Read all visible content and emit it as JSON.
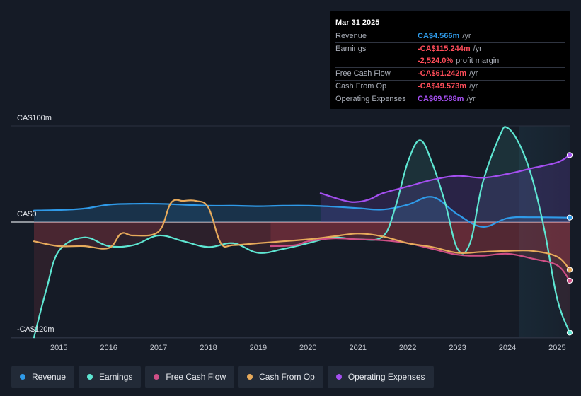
{
  "colors": {
    "background": "#151b26",
    "revenue": "#2f9ae8",
    "earnings": "#5ee6d2",
    "free_cash_flow": "#cf4f86",
    "cash_from_op": "#e7aa5b",
    "operating_expenses": "#a44ff0",
    "negative": "#ff4d5a",
    "positive_fill": "#1f4f77"
  },
  "tooltip": {
    "date": "Mar 31 2025",
    "rows": [
      {
        "label": "Revenue",
        "value": "CA$4.566m",
        "unit": "/yr",
        "color": "#2f9ae8"
      },
      {
        "label": "Earnings",
        "value": "-CA$115.244m",
        "unit": "/yr",
        "color": "#ff4d5a"
      },
      {
        "label": "",
        "value": "-2,524.0%",
        "unit": "profit margin",
        "color": "#ff4d5a"
      },
      {
        "label": "Free Cash Flow",
        "value": "-CA$61.242m",
        "unit": "/yr",
        "color": "#ff4d5a"
      },
      {
        "label": "Cash From Op",
        "value": "-CA$49.573m",
        "unit": "/yr",
        "color": "#ff4d5a"
      },
      {
        "label": "Operating Expenses",
        "value": "CA$69.588m",
        "unit": "/yr",
        "color": "#a44ff0"
      }
    ]
  },
  "legend": [
    {
      "label": "Revenue",
      "color": "#2f9ae8"
    },
    {
      "label": "Earnings",
      "color": "#5ee6d2"
    },
    {
      "label": "Free Cash Flow",
      "color": "#cf4f86"
    },
    {
      "label": "Cash From Op",
      "color": "#e7aa5b"
    },
    {
      "label": "Operating Expenses",
      "color": "#a44ff0"
    }
  ],
  "chart_data": {
    "type": "line",
    "y_axis_labels": [
      "CA$100m",
      "CA$0",
      "-CA$120m"
    ],
    "ylim": [
      -120,
      100
    ],
    "xlim": [
      2014.5,
      2025.25
    ],
    "x_ticks": [
      "2015",
      "2016",
      "2017",
      "2018",
      "2019",
      "2020",
      "2021",
      "2022",
      "2023",
      "2024",
      "2025"
    ],
    "grid": true,
    "series": [
      {
        "name": "Revenue",
        "color": "#2f9ae8",
        "points": [
          [
            2014.5,
            12
          ],
          [
            2015.0,
            12.5
          ],
          [
            2015.5,
            14
          ],
          [
            2016.0,
            18
          ],
          [
            2016.5,
            19
          ],
          [
            2017.0,
            19
          ],
          [
            2017.5,
            18
          ],
          [
            2018.0,
            17
          ],
          [
            2018.5,
            17
          ],
          [
            2019.0,
            16.5
          ],
          [
            2019.5,
            17
          ],
          [
            2020.0,
            17
          ],
          [
            2020.5,
            16
          ],
          [
            2021.0,
            14.5
          ],
          [
            2021.5,
            13
          ],
          [
            2022.0,
            18
          ],
          [
            2022.5,
            26
          ],
          [
            2023.0,
            8
          ],
          [
            2023.5,
            -5
          ],
          [
            2024.0,
            4
          ],
          [
            2024.5,
            5
          ],
          [
            2025.25,
            4.6
          ]
        ]
      },
      {
        "name": "Earnings",
        "color": "#5ee6d2",
        "points": [
          [
            2014.5,
            -120
          ],
          [
            2014.75,
            -70
          ],
          [
            2015.0,
            -30
          ],
          [
            2015.5,
            -16
          ],
          [
            2016.0,
            -25
          ],
          [
            2016.5,
            -24
          ],
          [
            2017.0,
            -14
          ],
          [
            2017.5,
            -20
          ],
          [
            2018.0,
            -26
          ],
          [
            2018.5,
            -22
          ],
          [
            2019.0,
            -32
          ],
          [
            2019.5,
            -28
          ],
          [
            2020.0,
            -22
          ],
          [
            2020.5,
            -16
          ],
          [
            2021.0,
            -18
          ],
          [
            2021.5,
            -15
          ],
          [
            2021.75,
            15
          ],
          [
            2022.0,
            62
          ],
          [
            2022.25,
            85
          ],
          [
            2022.5,
            60
          ],
          [
            2022.75,
            20
          ],
          [
            2023.0,
            -28
          ],
          [
            2023.25,
            -22
          ],
          [
            2023.5,
            40
          ],
          [
            2023.85,
            90
          ],
          [
            2024.0,
            98
          ],
          [
            2024.25,
            80
          ],
          [
            2024.5,
            45
          ],
          [
            2024.75,
            -10
          ],
          [
            2025.0,
            -80
          ],
          [
            2025.25,
            -115
          ]
        ]
      },
      {
        "name": "Free Cash Flow",
        "color": "#cf4f86",
        "points": [
          [
            2019.25,
            -25
          ],
          [
            2019.75,
            -24
          ],
          [
            2020.0,
            -20
          ],
          [
            2020.5,
            -17
          ],
          [
            2021.0,
            -18
          ],
          [
            2021.5,
            -19
          ],
          [
            2022.0,
            -22
          ],
          [
            2022.5,
            -28
          ],
          [
            2023.0,
            -34
          ],
          [
            2023.5,
            -35
          ],
          [
            2024.0,
            -33
          ],
          [
            2024.5,
            -38
          ],
          [
            2025.0,
            -45
          ],
          [
            2025.25,
            -61
          ]
        ]
      },
      {
        "name": "Cash From Op",
        "color": "#e7aa5b",
        "points": [
          [
            2014.5,
            -20
          ],
          [
            2015.0,
            -25
          ],
          [
            2015.5,
            -25
          ],
          [
            2016.0,
            -27
          ],
          [
            2016.25,
            -12
          ],
          [
            2016.5,
            -14
          ],
          [
            2017.0,
            -10
          ],
          [
            2017.25,
            20
          ],
          [
            2017.5,
            22
          ],
          [
            2017.75,
            22
          ],
          [
            2018.0,
            15
          ],
          [
            2018.25,
            -22
          ],
          [
            2018.5,
            -24
          ],
          [
            2019.0,
            -22
          ],
          [
            2019.5,
            -20
          ],
          [
            2020.0,
            -18
          ],
          [
            2020.5,
            -15
          ],
          [
            2021.0,
            -12
          ],
          [
            2021.5,
            -15
          ],
          [
            2022.0,
            -22
          ],
          [
            2022.5,
            -26
          ],
          [
            2023.0,
            -32
          ],
          [
            2023.5,
            -31
          ],
          [
            2024.0,
            -30
          ],
          [
            2024.5,
            -30
          ],
          [
            2025.0,
            -36
          ],
          [
            2025.25,
            -49.6
          ]
        ]
      },
      {
        "name": "Operating Expenses",
        "color": "#a44ff0",
        "points": [
          [
            2020.25,
            30
          ],
          [
            2020.75,
            22
          ],
          [
            2021.0,
            21
          ],
          [
            2021.25,
            24
          ],
          [
            2021.5,
            30
          ],
          [
            2022.0,
            37
          ],
          [
            2022.5,
            44
          ],
          [
            2023.0,
            48
          ],
          [
            2023.5,
            46
          ],
          [
            2024.0,
            50
          ],
          [
            2024.5,
            56
          ],
          [
            2025.0,
            62
          ],
          [
            2025.25,
            69.6
          ]
        ]
      }
    ]
  }
}
